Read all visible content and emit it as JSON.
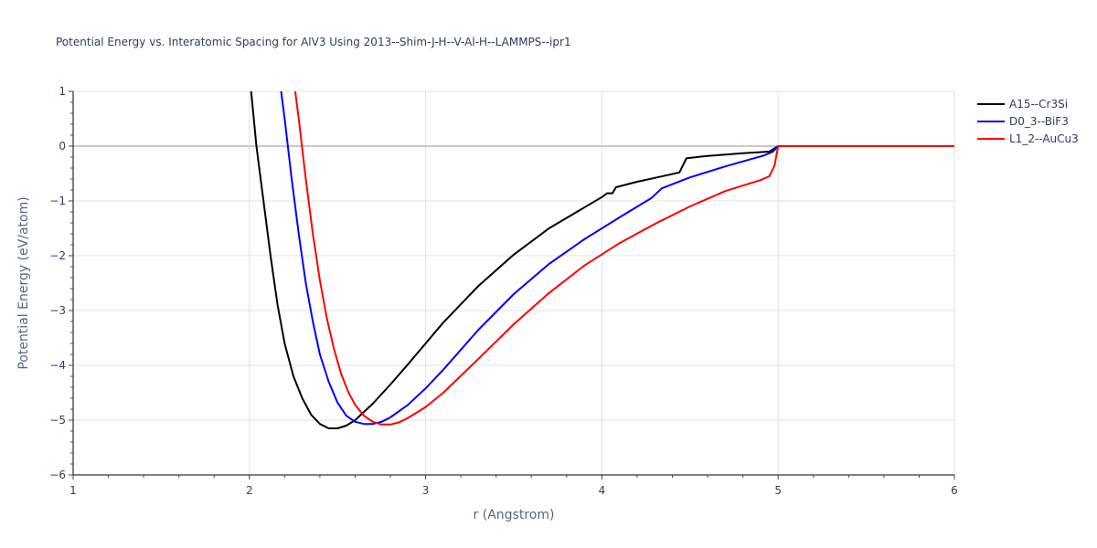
{
  "chart_data": {
    "type": "line",
    "title": "Potential Energy vs. Interatomic Spacing for AlV3 Using 2013--Shim-J-H--V-Al-H--LAMMPS--ipr1",
    "xlabel": "r (Angstrom)",
    "ylabel": "Potential Energy (eV/atom)",
    "xlim": [
      1,
      6
    ],
    "ylim": [
      -6,
      1
    ],
    "xticks": [
      1,
      2,
      3,
      4,
      5,
      6
    ],
    "yticks": [
      1,
      0,
      -1,
      -2,
      -3,
      -4,
      -5,
      -6
    ],
    "xtick_labels": [
      "1",
      "2",
      "3",
      "4",
      "5",
      "6"
    ],
    "ytick_labels": [
      "1",
      "0",
      "−1",
      "−2",
      "−3",
      "−4",
      "−5",
      "−6"
    ],
    "grid": true,
    "legend_position": "top-right",
    "series": [
      {
        "name": "A15--Cr3Si",
        "color": "#000000",
        "x": [
          2.01,
          2.04,
          2.08,
          2.12,
          2.16,
          2.2,
          2.25,
          2.3,
          2.35,
          2.4,
          2.45,
          2.5,
          2.55,
          2.6,
          2.65,
          2.7,
          2.8,
          2.9,
          3.0,
          3.1,
          3.3,
          3.5,
          3.7,
          3.9,
          4.0,
          4.03,
          4.06,
          4.08,
          4.2,
          4.3,
          4.44,
          4.48,
          4.6,
          4.8,
          4.95,
          5.0,
          5.5,
          6.0
        ],
        "y": [
          1.0,
          0.0,
          -1.0,
          -2.0,
          -2.9,
          -3.6,
          -4.2,
          -4.6,
          -4.9,
          -5.07,
          -5.15,
          -5.15,
          -5.1,
          -5.0,
          -4.85,
          -4.7,
          -4.35,
          -3.98,
          -3.6,
          -3.22,
          -2.55,
          -1.98,
          -1.5,
          -1.12,
          -0.93,
          -0.86,
          -0.86,
          -0.75,
          -0.65,
          -0.58,
          -0.48,
          -0.22,
          -0.18,
          -0.13,
          -0.1,
          0.0,
          0.0,
          0.0
        ]
      },
      {
        "name": "D0_3--BiF3",
        "color": "#0000ff",
        "x": [
          2.18,
          2.2,
          2.24,
          2.28,
          2.32,
          2.36,
          2.4,
          2.45,
          2.5,
          2.55,
          2.6,
          2.65,
          2.7,
          2.75,
          2.8,
          2.9,
          3.0,
          3.1,
          3.3,
          3.5,
          3.7,
          3.9,
          4.1,
          4.28,
          4.34,
          4.5,
          4.7,
          4.92,
          4.97,
          5.0,
          5.5,
          6.0
        ],
        "y": [
          1.0,
          0.5,
          -0.6,
          -1.6,
          -2.5,
          -3.2,
          -3.8,
          -4.3,
          -4.68,
          -4.92,
          -5.03,
          -5.07,
          -5.07,
          -5.03,
          -4.95,
          -4.72,
          -4.42,
          -4.08,
          -3.35,
          -2.7,
          -2.15,
          -1.7,
          -1.3,
          -0.95,
          -0.77,
          -0.57,
          -0.37,
          -0.17,
          -0.1,
          0.0,
          0.0,
          0.0
        ]
      },
      {
        "name": "L1_2--AuCu3",
        "color": "#ff0000",
        "x": [
          2.26,
          2.28,
          2.32,
          2.36,
          2.4,
          2.44,
          2.48,
          2.52,
          2.56,
          2.6,
          2.65,
          2.7,
          2.75,
          2.8,
          2.85,
          2.9,
          3.0,
          3.1,
          3.3,
          3.5,
          3.7,
          3.9,
          4.1,
          4.3,
          4.5,
          4.7,
          4.9,
          4.95,
          4.98,
          5.0,
          5.5,
          6.0
        ],
        "y": [
          1.0,
          0.5,
          -0.6,
          -1.6,
          -2.45,
          -3.15,
          -3.7,
          -4.15,
          -4.48,
          -4.72,
          -4.92,
          -5.03,
          -5.08,
          -5.08,
          -5.04,
          -4.96,
          -4.76,
          -4.5,
          -3.88,
          -3.25,
          -2.68,
          -2.18,
          -1.77,
          -1.42,
          -1.1,
          -0.82,
          -0.62,
          -0.55,
          -0.35,
          0.0,
          0.0,
          0.0
        ]
      }
    ]
  }
}
